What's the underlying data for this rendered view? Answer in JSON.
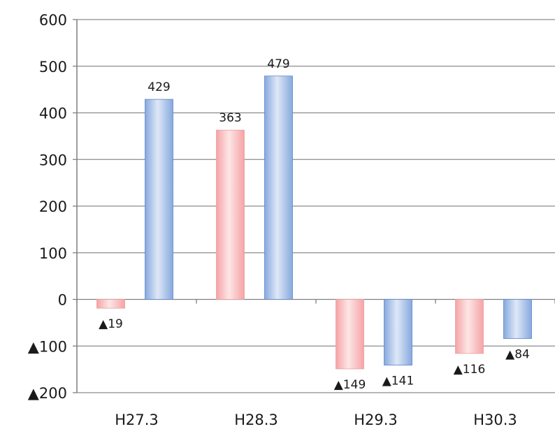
{
  "chart_data": {
    "type": "bar",
    "categories": [
      "H27.3",
      "H28.3",
      "H29.3",
      "H30.3"
    ],
    "series": [
      {
        "values": [
          -19,
          363,
          -149,
          -116
        ],
        "labels": [
          "▲19",
          "363",
          "▲149",
          "▲116"
        ]
      },
      {
        "values": [
          429,
          479,
          -141,
          -84
        ],
        "labels": [
          "429",
          "479",
          "▲141",
          "▲84"
        ]
      }
    ],
    "ylim": [
      -200,
      600
    ],
    "yticks": [
      600,
      500,
      400,
      300,
      200,
      100,
      0,
      -100,
      -200
    ],
    "ytick_labels": [
      "600",
      "500",
      "400",
      "300",
      "200",
      "100",
      "0",
      "▲100",
      "▲200"
    ],
    "grid": true,
    "colors": {
      "series1_edge": "#e8a0a0",
      "series1_light": "#fde6e6",
      "series1_mid": "#f6a3a6",
      "series2_edge": "#5f86c8",
      "series2_light": "#dfe8f7",
      "series2_mid": "#86a9de",
      "grid": "#8c8c8c",
      "axis": "#7f7f7f"
    }
  }
}
